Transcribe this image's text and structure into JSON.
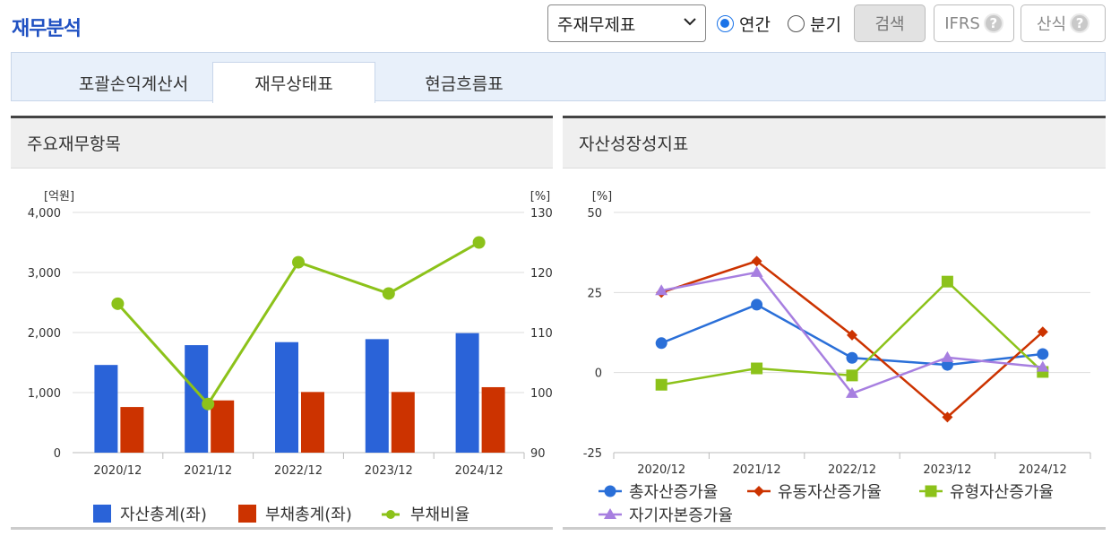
{
  "header": {
    "title": "재무분석",
    "select_value": "주재무제표",
    "radio_annual": "연간",
    "radio_quarter": "분기",
    "search_label": "검색",
    "ifrs_label": "IFRS",
    "formula_label": "산식",
    "help_glyph": "?"
  },
  "tabs": [
    {
      "label": "포괄손익계산서"
    },
    {
      "label": "재무상태표"
    },
    {
      "label": "현금흐름표"
    }
  ],
  "left_panel": {
    "title": "주요재무항목"
  },
  "right_panel": {
    "title": "자산성장성지표"
  },
  "chart_data": [
    {
      "type": "bar",
      "title": "주요재무항목",
      "categories": [
        "2020/12",
        "2021/12",
        "2022/12",
        "2023/12",
        "2024/12"
      ],
      "y_unit_left": "[억원]",
      "y_unit_right": "[%]",
      "ylim": [
        0,
        4000
      ],
      "yticks": [
        0,
        1000,
        2000,
        3000,
        4000
      ],
      "ytick_labels": [
        "0",
        "1,000",
        "2,000",
        "3,000",
        "4,000"
      ],
      "y2lim": [
        90,
        130
      ],
      "y2ticks": [
        90,
        100,
        110,
        120,
        130
      ],
      "legend_position": "bottom",
      "series": [
        {
          "name": "자산총계(좌)",
          "kind": "bar",
          "color": "#2a63d8",
          "values": [
            1460,
            1790,
            1840,
            1890,
            1990
          ]
        },
        {
          "name": "부채총계(좌)",
          "kind": "bar",
          "color": "#cc3300",
          "values": [
            760,
            870,
            1010,
            1010,
            1090
          ]
        },
        {
          "name": "부채비율",
          "kind": "line",
          "axis": "right",
          "color": "#8cc21a",
          "values": [
            114.8,
            98.1,
            121.7,
            116.5,
            125.0
          ]
        }
      ]
    },
    {
      "type": "line",
      "title": "자산성장성지표",
      "categories": [
        "2020/12",
        "2021/12",
        "2022/12",
        "2023/12",
        "2024/12"
      ],
      "y_unit": "[%]",
      "ylim": [
        -25,
        50
      ],
      "yticks": [
        -25,
        0,
        25,
        50
      ],
      "legend_position": "bottom",
      "series": [
        {
          "name": "총자산증가율",
          "marker": "circle",
          "color": "#2a6fd8",
          "values": [
            9.2,
            21.2,
            4.6,
            2.4,
            5.8
          ]
        },
        {
          "name": "유동자산증가율",
          "marker": "diamond",
          "color": "#cc3300",
          "values": [
            25.0,
            34.8,
            11.7,
            -13.9,
            12.7
          ]
        },
        {
          "name": "유형자산증가율",
          "marker": "square",
          "color": "#8cc21a",
          "values": [
            -3.8,
            1.3,
            -0.9,
            28.4,
            0.2
          ]
        },
        {
          "name": "자기자본증가율",
          "marker": "triangle",
          "color": "#a77fe0",
          "values": [
            25.6,
            31.3,
            -6.5,
            4.7,
            1.7
          ]
        }
      ]
    }
  ]
}
